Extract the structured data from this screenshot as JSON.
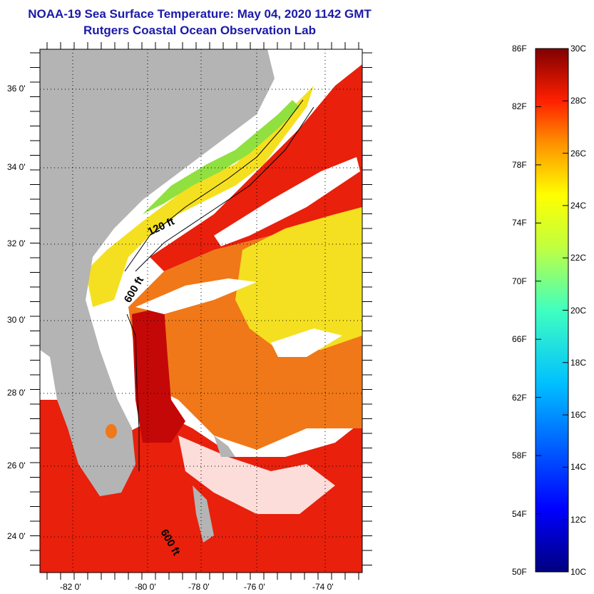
{
  "header": {
    "title": "NOAA-19 Sea Surface Temperature:  May 04, 2020 1142 GMT",
    "subtitle": "Rutgers Coastal Ocean Observation Lab"
  },
  "map": {
    "lat_labels": [
      "36 0'",
      "34 0'",
      "32 0'",
      "30 0'",
      "28 0'",
      "26 0'",
      "24 0'"
    ],
    "lon_labels": [
      "-82 0'",
      "-80 0'",
      "-78 0'",
      "-76 0'",
      "-74 0'"
    ],
    "contours": [
      "120 ft",
      "600 ft",
      "600 ft"
    ],
    "colors": {
      "land": "#b4b4b4",
      "cloud": "#ffffff",
      "warm_red": "#e8200c",
      "dark_red": "#c40808",
      "orange": "#f07818",
      "yellow": "#f4e020",
      "green": "#90e040"
    }
  },
  "colorbar": {
    "f_labels": [
      "86F",
      "82F",
      "78F",
      "74F",
      "70F",
      "66F",
      "62F",
      "58F",
      "54F",
      "50F"
    ],
    "c_labels": [
      "30C",
      "28C",
      "26C",
      "24C",
      "22C",
      "20C",
      "18C",
      "16C",
      "14C",
      "12C",
      "10C"
    ],
    "min_c": 10,
    "max_c": 30,
    "min_f": 50,
    "max_f": 86
  }
}
